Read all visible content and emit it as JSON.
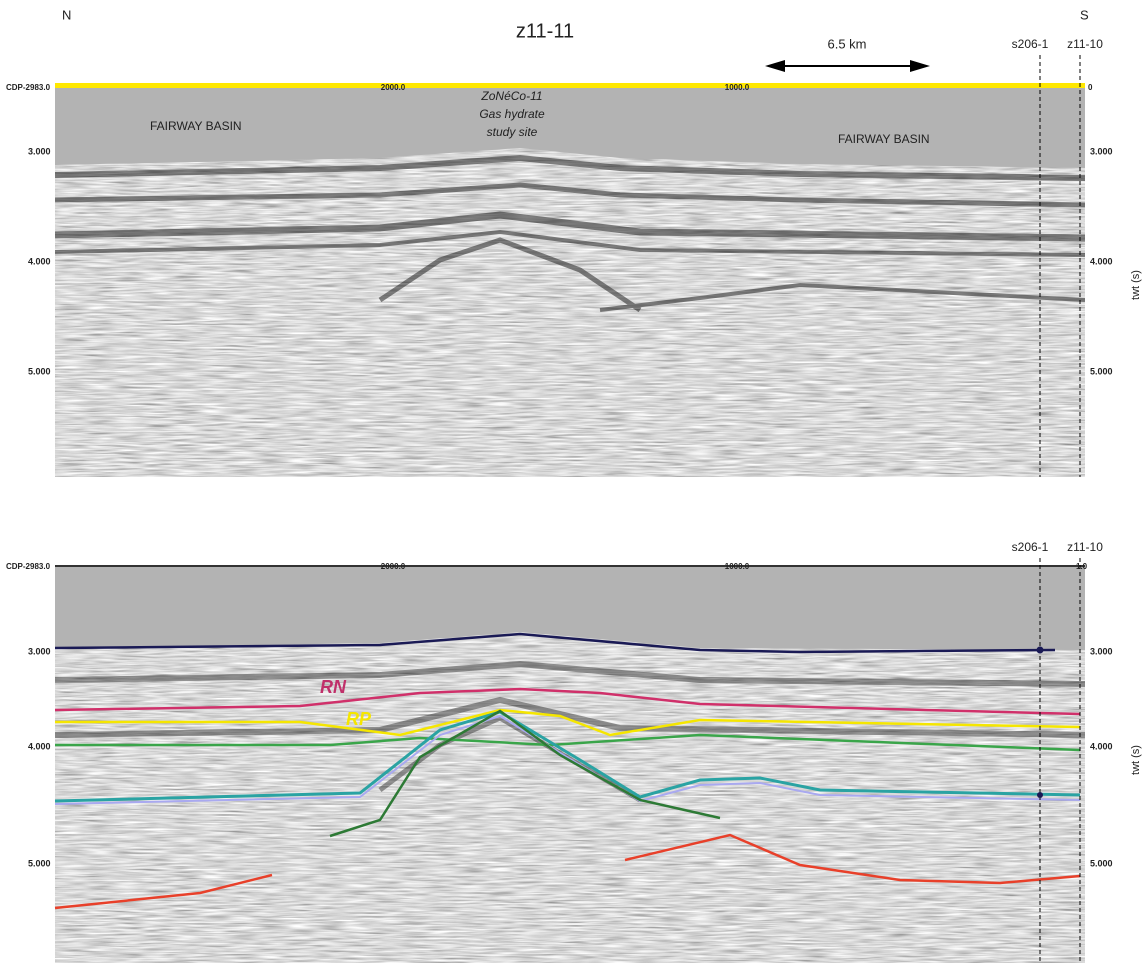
{
  "header": {
    "north": "N",
    "south": "S",
    "title": "z11-11",
    "scale": "6.5 km"
  },
  "top_panel": {
    "wells": [
      "s206-1",
      "z11-10"
    ],
    "cdp_labels": [
      "CDP-2983.0",
      "2000.0",
      "1000.0",
      "0"
    ],
    "site_label": [
      "ZoNéCo-11",
      "Gas hydrate",
      "study site"
    ],
    "basin_labels": [
      "FAIRWAY BASIN",
      "FAIRWAY BASIN"
    ],
    "left_ticks": [
      "3.000",
      "4.000",
      "5.000"
    ],
    "right_ticks": [
      "3.000",
      "4.000",
      "5.000"
    ],
    "axis_label": "twt (s)"
  },
  "bottom_panel": {
    "wells": [
      "s206-1",
      "z11-10"
    ],
    "cdp_labels": [
      "CDP-2983.0",
      "2000.0",
      "1000.0",
      "1.0"
    ],
    "horizon_labels": [
      "RN",
      "RP"
    ],
    "left_ticks": [
      "3.000",
      "4.000",
      "5.000"
    ],
    "right_ticks": [
      "3.000",
      "4.000",
      "5.000"
    ],
    "axis_label": "twt (s)"
  }
}
